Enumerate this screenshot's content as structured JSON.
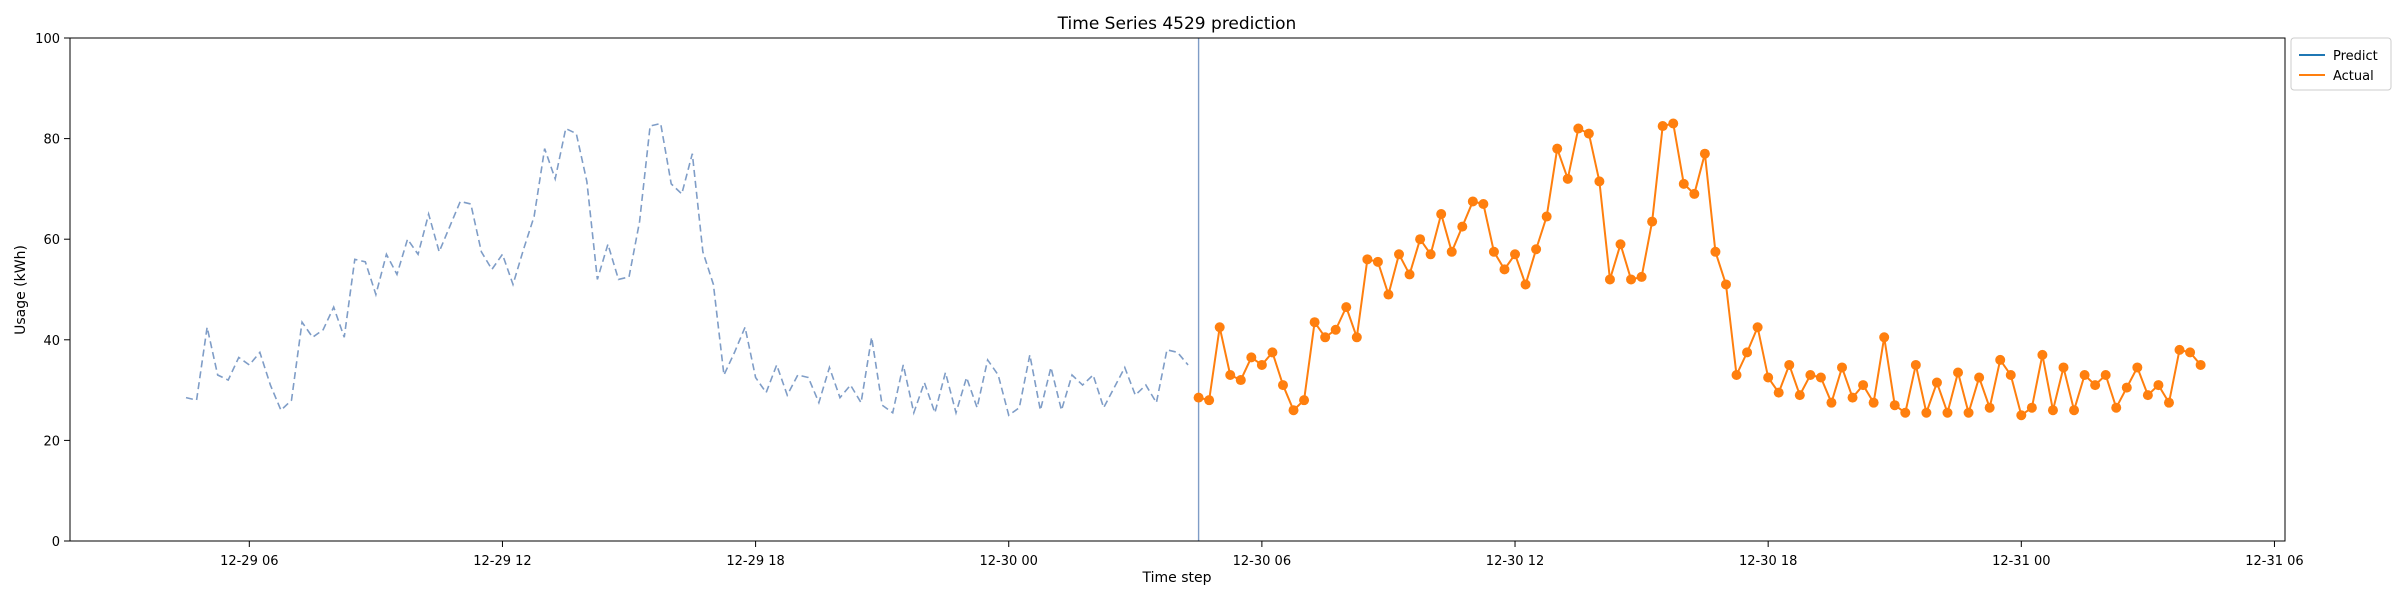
{
  "chart_data": {
    "type": "line",
    "title": "Time Series 4529 prediction",
    "xlabel": "Time step",
    "ylabel": "Usage (kWh)",
    "ylim": [
      0,
      100
    ],
    "yticks": [
      0,
      20,
      40,
      60,
      80,
      100
    ],
    "x_start": "12-29 04:30",
    "x_split": "12-30 04:30",
    "x_interval_minutes": 15,
    "xlim": [
      "12-29 01:45",
      "12-31 06:15"
    ],
    "xtick_labels": [
      "12-29 06",
      "12-29 12",
      "12-29 18",
      "12-30 00",
      "12-30 06",
      "12-30 12",
      "12-30 18",
      "12-31 00",
      "12-31 06"
    ],
    "legend": {
      "position": "top-right",
      "entries": [
        "Predict",
        "Actual"
      ]
    },
    "series": [
      {
        "name": "History",
        "color": "#7f9dc7",
        "style": "dashed",
        "values": [
          28.5,
          28.0,
          42.5,
          33.0,
          32.0,
          36.5,
          35.0,
          37.5,
          31.0,
          26.0,
          28.0,
          43.5,
          40.5,
          42.0,
          46.5,
          40.5,
          56.0,
          55.5,
          49.0,
          57.0,
          53.0,
          60.0,
          57.0,
          65.0,
          57.5,
          62.5,
          67.5,
          67.0,
          57.5,
          54.0,
          57.0,
          51.0,
          58.0,
          64.5,
          78.0,
          72.0,
          82.0,
          81.0,
          71.5,
          52.0,
          59.0,
          52.0,
          52.5,
          63.5,
          82.5,
          83.0,
          71.0,
          69.0,
          77.0,
          57.5,
          51.0,
          33.0,
          37.5,
          42.5,
          32.5,
          29.5,
          35.0,
          29.0,
          33.0,
          32.5,
          27.5,
          34.5,
          28.5,
          31.0,
          27.5,
          40.5,
          27.0,
          25.5,
          35.0,
          25.5,
          31.5,
          25.5,
          33.5,
          25.5,
          32.5,
          26.5,
          36.0,
          33.0,
          25.0,
          26.5,
          37.0,
          26.0,
          34.5,
          26.0,
          33.0,
          31.0,
          33.0,
          26.5,
          30.5,
          34.5,
          29.0,
          31.0,
          27.5,
          38.0,
          37.5,
          35.0
        ]
      },
      {
        "name": "Predict",
        "color": "#1f77b4",
        "style": "solid",
        "values": []
      },
      {
        "name": "Actual",
        "color": "#ff7f0e",
        "style": "solid-markers",
        "values": [
          28.5,
          28.0,
          42.5,
          33.0,
          32.0,
          36.5,
          35.0,
          37.5,
          31.0,
          26.0,
          28.0,
          43.5,
          40.5,
          42.0,
          46.5,
          40.5,
          56.0,
          55.5,
          49.0,
          57.0,
          53.0,
          60.0,
          57.0,
          65.0,
          57.5,
          62.5,
          67.5,
          67.0,
          57.5,
          54.0,
          57.0,
          51.0,
          58.0,
          64.5,
          78.0,
          72.0,
          82.0,
          81.0,
          71.5,
          52.0,
          59.0,
          52.0,
          52.5,
          63.5,
          82.5,
          83.0,
          71.0,
          69.0,
          77.0,
          57.5,
          51.0,
          33.0,
          37.5,
          42.5,
          32.5,
          29.5,
          35.0,
          29.0,
          33.0,
          32.5,
          27.5,
          34.5,
          28.5,
          31.0,
          27.5,
          40.5,
          27.0,
          25.5,
          35.0,
          25.5,
          31.5,
          25.5,
          33.5,
          25.5,
          32.5,
          26.5,
          36.0,
          33.0,
          25.0,
          26.5,
          37.0,
          26.0,
          34.5,
          26.0,
          33.0,
          31.0,
          33.0,
          26.5,
          30.5,
          34.5,
          29.0,
          31.0,
          27.5,
          38.0,
          37.5,
          35.0
        ]
      }
    ]
  }
}
